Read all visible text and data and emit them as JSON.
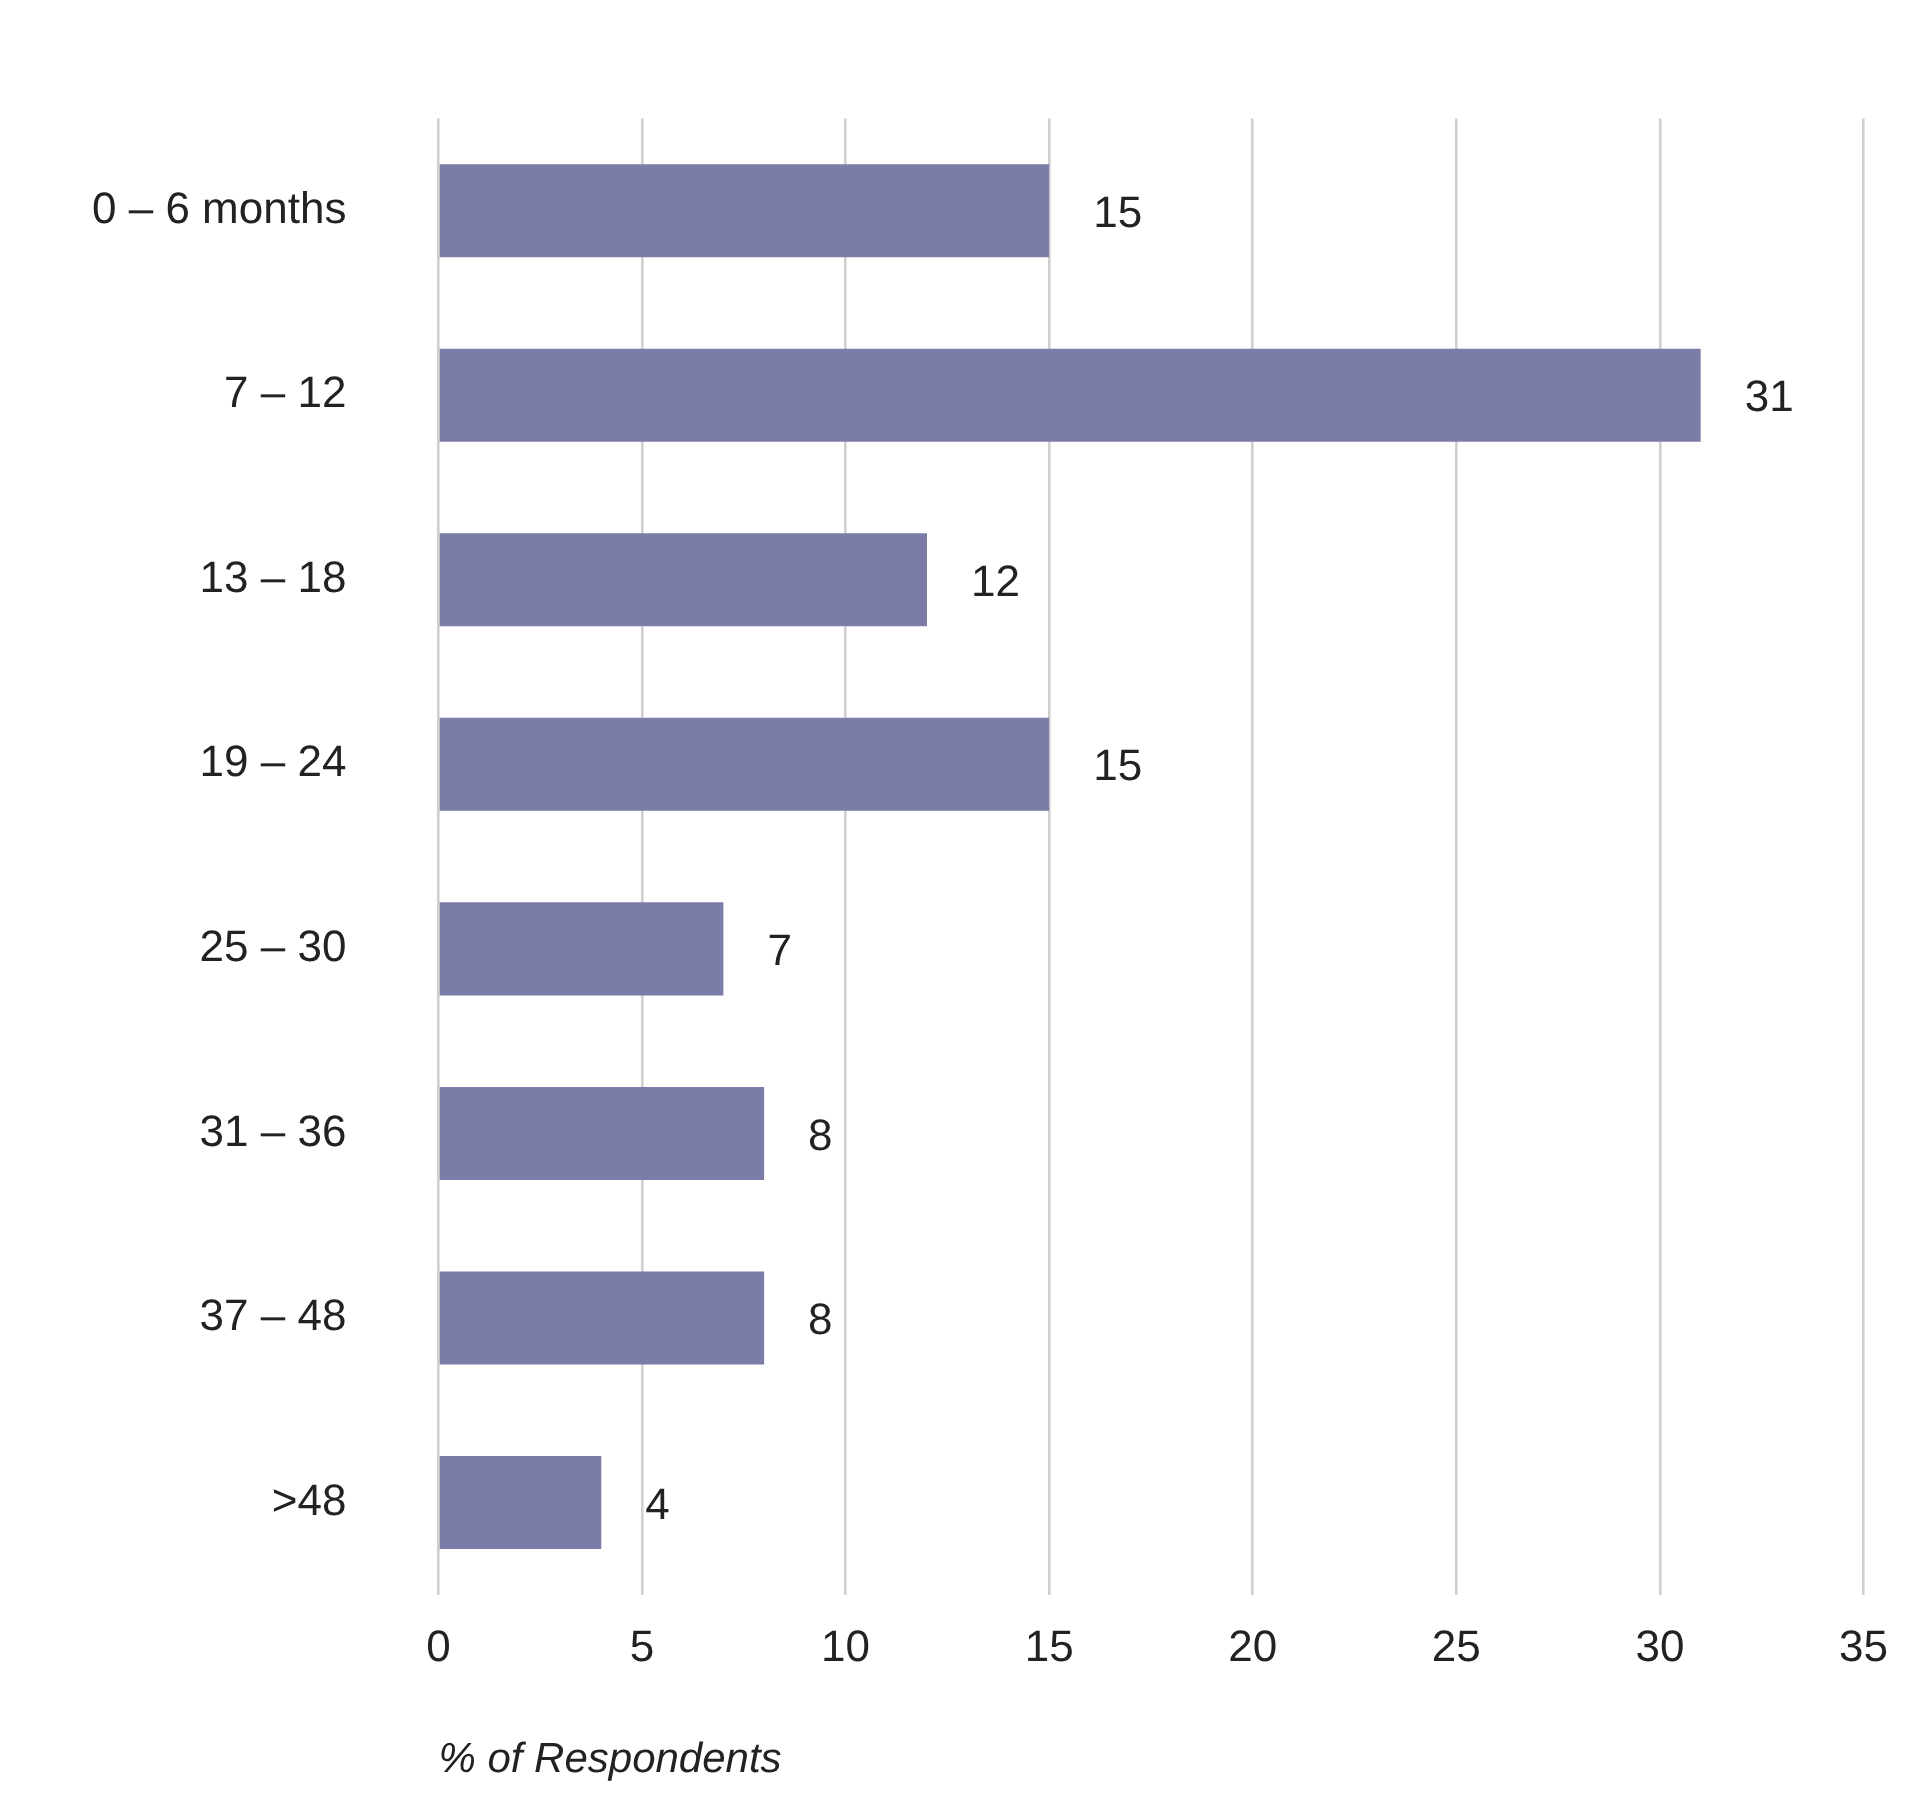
{
  "chart_data": {
    "type": "bar",
    "orientation": "horizontal",
    "xlabel": "% of Respondents",
    "categories": [
      "0 – 6 months",
      "7 – 12",
      "13 – 18",
      "19 – 24",
      "25 – 30",
      "31 – 36",
      "37 – 48",
      ">48"
    ],
    "values": [
      15,
      31,
      12,
      15,
      7,
      8,
      8,
      4
    ],
    "color": "#7b7da8",
    "xlim": [
      0,
      35
    ],
    "xticks": [
      0,
      5,
      10,
      15,
      20,
      25,
      30,
      35
    ],
    "grid": "x",
    "data_labels": true
  }
}
